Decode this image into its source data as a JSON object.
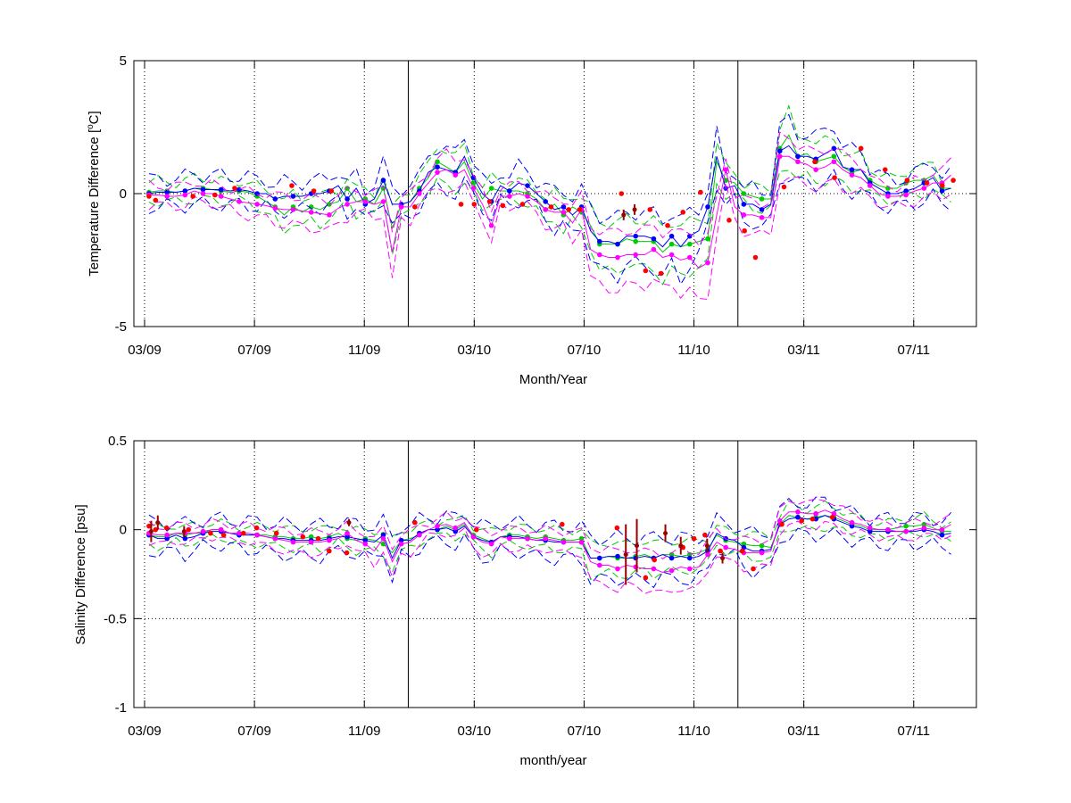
{
  "chart_data": [
    {
      "type": "line",
      "xlabel": "Month/Year",
      "ylabel_prefix": "Temperature Difference [",
      "ylabel_sup": "o",
      "ylabel_suffix": "C]",
      "ylim": [
        -5,
        5
      ],
      "yticks": [
        -5,
        0,
        5
      ],
      "ytick_labels": [
        "-5",
        "0",
        "5"
      ],
      "xlim": [
        0,
        37
      ],
      "xticks": [
        0,
        5,
        10,
        15,
        20,
        25,
        30,
        35
      ],
      "xtick_labels": [
        "03/09",
        "07/09",
        "11/09",
        "03/10",
        "07/10",
        "11/10",
        "03/11",
        "07/11"
      ],
      "vlines": [
        12,
        27
      ],
      "hline_dotted": 0,
      "grid": "dotted vertical at ticks",
      "series": [
        {
          "color": "#00cc00",
          "style": "dots-line",
          "values": [
            0.05,
            0.1,
            0.1,
            0.05,
            0.1,
            0.2,
            0.2,
            0.15,
            0.1,
            0.05,
            0.1,
            0.05,
            -0.1,
            -0.3,
            -0.5,
            -0.8,
            -0.5,
            -0.7,
            -0.5,
            -0.6,
            -0.4,
            -0.3,
            0.2,
            -0.3,
            -0.2,
            -0.4,
            0.2,
            -1.3,
            -0.4,
            -0.3,
            0.2,
            0.6,
            1.2,
            1.0,
            0.8,
            1.2,
            0.4,
            -0.2,
            0.2,
            0.1,
            0.1,
            0.1,
            0.0,
            -0.2,
            -0.6,
            -0.4,
            -0.8,
            -0.5,
            -0.7,
            -1.2,
            -1.9,
            -1.9,
            -1.9,
            -1.7,
            -1.8,
            -1.8,
            -1.8,
            -2.2,
            -1.9,
            -2.0,
            -1.9,
            -1.8,
            -1.7,
            1.2,
            0.5,
            0.4,
            0.0,
            -0.1,
            -0.2,
            -0.2,
            1.7,
            2.2,
            1.4,
            1.5,
            1.2,
            1.3,
            1.4,
            1.0,
            0.8,
            0.9,
            0.5,
            0.3,
            0.2,
            0.2,
            0.4,
            0.5,
            0.5,
            0.7,
            0.2,
            0.2
          ]
        },
        {
          "color": "#0000ff",
          "style": "dots-line",
          "values": [
            0.0,
            0.05,
            0.05,
            0.05,
            0.1,
            0.2,
            0.15,
            0.15,
            0.15,
            0.1,
            0.15,
            0.1,
            0.0,
            0.0,
            -0.2,
            -0.1,
            -0.1,
            -0.1,
            0.0,
            0.0,
            0.1,
            0.3,
            -0.2,
            0.2,
            -0.4,
            -0.2,
            0.5,
            -0.4,
            -0.4,
            -0.3,
            0.1,
            0.8,
            1.0,
            0.9,
            0.8,
            1.4,
            0.6,
            0.0,
            -0.3,
            0.3,
            0.1,
            0.4,
            0.3,
            0.0,
            -0.3,
            -0.6,
            -0.5,
            -0.8,
            -0.5,
            -1.4,
            -1.8,
            -1.8,
            -1.9,
            -1.6,
            -1.6,
            -1.6,
            -1.7,
            -2.0,
            -1.6,
            -2.0,
            -1.6,
            -1.4,
            -0.5,
            1.4,
            0.2,
            0.3,
            -0.4,
            -0.4,
            -0.6,
            -0.4,
            1.6,
            1.8,
            1.4,
            1.4,
            1.3,
            1.5,
            1.7,
            1.0,
            0.9,
            0.9,
            0.4,
            0.2,
            0.0,
            0.0,
            0.1,
            0.2,
            0.4,
            0.6,
            0.1,
            0.2
          ]
        },
        {
          "color": "#ff00ff",
          "style": "dots-line",
          "values": [
            -0.05,
            -0.05,
            -0.1,
            -0.1,
            -0.05,
            0.1,
            0.0,
            0.0,
            -0.1,
            -0.2,
            -0.3,
            -0.35,
            -0.4,
            -0.45,
            -0.55,
            -0.6,
            -0.6,
            -0.65,
            -0.7,
            -0.75,
            -0.8,
            -0.55,
            -0.4,
            -0.3,
            -0.3,
            -0.4,
            -0.3,
            -2.2,
            -0.5,
            -0.5,
            0.0,
            0.4,
            0.8,
            0.9,
            0.7,
            0.9,
            0.2,
            -0.4,
            -1.2,
            -0.1,
            -0.1,
            0.0,
            -0.1,
            -0.3,
            -0.6,
            -0.7,
            -0.7,
            -1.1,
            -0.6,
            -2.1,
            -2.3,
            -2.4,
            -2.4,
            -2.3,
            -2.3,
            -2.3,
            -2.1,
            -2.4,
            -2.3,
            -2.5,
            -2.4,
            -2.8,
            -2.6,
            -0.8,
            0.9,
            -0.5,
            -0.8,
            -0.8,
            -0.9,
            -0.9,
            1.4,
            1.4,
            1.2,
            1.1,
            0.9,
            1.0,
            1.2,
            0.9,
            0.7,
            0.6,
            0.3,
            0.0,
            -0.1,
            -0.1,
            -0.05,
            0.1,
            0.2,
            0.4,
            0.4,
            0.7
          ]
        },
        {
          "color": "#ff0000",
          "style": "markers",
          "x": [
            0.2,
            0.5,
            2.2,
            3.2,
            4.1,
            6.7,
            7.7,
            8.5,
            12.3,
            14.4,
            15.0,
            15.7,
            16.3,
            17.2,
            18.5,
            19.3,
            19.8,
            21.7,
            22.8,
            23.0,
            23.5,
            23.8,
            24.5,
            25.3,
            26.6,
            27.3,
            27.8,
            29.1,
            30.5,
            31.4,
            32.6,
            33.7,
            34.7,
            35.6,
            36.3,
            36.8
          ],
          "values": [
            -0.1,
            -0.25,
            -0.1,
            -0.05,
            0.2,
            0.3,
            0.1,
            0.1,
            -0.5,
            -0.4,
            -0.4,
            -0.3,
            -0.45,
            -0.4,
            -0.5,
            -0.6,
            -0.6,
            0.0,
            -2.9,
            -0.6,
            -3.0,
            -1.2,
            -0.7,
            0.05,
            -1.0,
            -1.4,
            -2.4,
            0.25,
            1.2,
            0.6,
            1.7,
            0.9,
            0.5,
            0.4,
            0.3,
            0.5
          ]
        },
        {
          "color": "#990000",
          "style": "errorbars",
          "x": [
            21.8,
            22.3
          ],
          "values": [
            -0.8,
            -0.6
          ],
          "err": [
            0.2,
            0.2
          ]
        }
      ]
    },
    {
      "type": "line",
      "xlabel": "month/year",
      "ylabel": "Salinity Difference [psu]",
      "ylim": [
        -1,
        0.5
      ],
      "yticks": [
        -1,
        -0.5,
        0,
        0.5
      ],
      "ytick_labels": [
        "-1",
        "-0.5",
        "0",
        "0.5"
      ],
      "xlim": [
        0,
        37
      ],
      "xticks": [
        0,
        5,
        10,
        15,
        20,
        25,
        30,
        35
      ],
      "xtick_labels": [
        "03/09",
        "07/09",
        "11/09",
        "03/10",
        "07/10",
        "11/10",
        "03/11",
        "07/11"
      ],
      "vlines": [
        12,
        27
      ],
      "hline_dotted": -0.5,
      "grid": "dotted vertical at ticks",
      "series": [
        {
          "color": "#00cc00",
          "style": "dots-line",
          "values": [
            -0.03,
            -0.04,
            -0.04,
            -0.02,
            -0.03,
            -0.02,
            -0.02,
            0.0,
            0.0,
            -0.02,
            -0.03,
            -0.03,
            -0.03,
            -0.03,
            -0.04,
            -0.04,
            -0.05,
            -0.05,
            -0.04,
            -0.05,
            -0.04,
            -0.02,
            -0.05,
            -0.06,
            -0.05,
            -0.06,
            -0.08,
            -0.13,
            -0.06,
            -0.05,
            -0.03,
            0.0,
            0.0,
            0.02,
            0.0,
            0.03,
            -0.03,
            -0.05,
            -0.07,
            -0.04,
            -0.03,
            -0.03,
            -0.04,
            -0.05,
            -0.04,
            -0.05,
            -0.06,
            -0.06,
            -0.05,
            -0.16,
            -0.16,
            -0.15,
            -0.16,
            -0.16,
            -0.15,
            -0.14,
            -0.16,
            -0.14,
            -0.14,
            -0.15,
            -0.14,
            -0.13,
            -0.11,
            -0.03,
            -0.06,
            -0.07,
            -0.08,
            -0.09,
            -0.09,
            -0.1,
            0.03,
            0.08,
            0.07,
            0.06,
            0.07,
            0.08,
            0.07,
            0.05,
            0.03,
            0.02,
            0.0,
            0.0,
            0.0,
            0.01,
            0.02,
            0.02,
            0.03,
            0.01,
            -0.01,
            -0.01
          ]
        },
        {
          "color": "#0000ff",
          "style": "dots-line",
          "values": [
            -0.03,
            -0.05,
            -0.05,
            -0.03,
            -0.05,
            -0.04,
            -0.02,
            -0.01,
            -0.01,
            -0.02,
            -0.03,
            -0.03,
            -0.03,
            -0.04,
            -0.05,
            -0.05,
            -0.06,
            -0.06,
            -0.06,
            -0.06,
            -0.05,
            -0.04,
            -0.04,
            -0.05,
            -0.06,
            -0.07,
            -0.03,
            -0.16,
            -0.06,
            -0.06,
            -0.02,
            0.0,
            0.0,
            0.01,
            -0.01,
            0.02,
            -0.04,
            -0.06,
            -0.07,
            -0.04,
            -0.04,
            -0.04,
            -0.05,
            -0.06,
            -0.06,
            -0.07,
            -0.07,
            -0.07,
            -0.07,
            -0.16,
            -0.16,
            -0.15,
            -0.15,
            -0.16,
            -0.16,
            -0.15,
            -0.16,
            -0.14,
            -0.16,
            -0.15,
            -0.16,
            -0.15,
            -0.12,
            -0.02,
            -0.05,
            -0.06,
            -0.1,
            -0.12,
            -0.12,
            -0.11,
            0.03,
            0.06,
            0.07,
            0.06,
            0.06,
            0.08,
            0.06,
            0.04,
            0.02,
            0.01,
            -0.01,
            -0.01,
            -0.01,
            -0.01,
            -0.01,
            -0.01,
            0.0,
            -0.01,
            -0.03,
            -0.02
          ]
        },
        {
          "color": "#ff00ff",
          "style": "dots-line",
          "values": [
            -0.02,
            -0.03,
            -0.03,
            -0.02,
            -0.02,
            -0.02,
            -0.01,
            0.0,
            0.0,
            -0.02,
            -0.02,
            -0.02,
            -0.03,
            -0.04,
            -0.05,
            -0.06,
            -0.07,
            -0.07,
            -0.07,
            -0.07,
            -0.06,
            -0.05,
            -0.02,
            -0.06,
            -0.08,
            -0.12,
            -0.05,
            -0.18,
            -0.08,
            -0.07,
            -0.03,
            0.0,
            0.02,
            0.03,
            0.01,
            0.04,
            -0.04,
            -0.07,
            -0.08,
            -0.04,
            -0.05,
            -0.05,
            -0.05,
            -0.06,
            -0.05,
            -0.06,
            -0.07,
            -0.07,
            -0.07,
            -0.18,
            -0.2,
            -0.2,
            -0.22,
            -0.2,
            -0.21,
            -0.22,
            -0.22,
            -0.24,
            -0.23,
            -0.21,
            -0.22,
            -0.21,
            -0.14,
            -0.07,
            -0.1,
            -0.11,
            -0.13,
            -0.13,
            -0.13,
            -0.12,
            0.05,
            0.1,
            0.1,
            0.09,
            0.09,
            0.11,
            0.09,
            0.06,
            0.04,
            0.03,
            0.01,
            0.0,
            0.0,
            -0.01,
            -0.01,
            0.0,
            0.01,
            0.0,
            0.0,
            0.03
          ]
        },
        {
          "color": "#ff0000",
          "style": "markers",
          "x": [
            0.2,
            0.5,
            1.0,
            2.0,
            3.0,
            3.6,
            4.5,
            5.1,
            6.0,
            7.2,
            7.9,
            8.4,
            9.2,
            12.3,
            15.1,
            19.0,
            21.5,
            22.8,
            23.2,
            24.5,
            25.0,
            25.5,
            26.2,
            27.2,
            27.7,
            29.0,
            29.9,
            30.4,
            31.3
          ],
          "values": [
            0.02,
            0.0,
            0.01,
            0.0,
            -0.02,
            -0.03,
            -0.02,
            0.01,
            -0.02,
            -0.04,
            -0.05,
            -0.12,
            -0.13,
            0.04,
            0.0,
            0.03,
            0.01,
            -0.27,
            -0.17,
            -0.1,
            -0.05,
            -0.03,
            -0.12,
            -0.12,
            -0.22,
            0.03,
            0.05,
            0.06,
            0.07
          ]
        },
        {
          "color": "#990000",
          "style": "errorbars",
          "x": [
            0.3,
            0.6,
            1.8,
            9.3,
            21.9,
            22.4,
            23.7,
            24.4,
            25.6,
            26.3
          ],
          "values": [
            -0.01,
            0.04,
            -0.01,
            0.04,
            -0.14,
            -0.09,
            -0.02,
            -0.09,
            -0.09,
            -0.16
          ],
          "err": [
            0.06,
            0.04,
            0.03,
            0.02,
            0.17,
            0.15,
            0.05,
            0.05,
            0.04,
            0.03
          ]
        }
      ]
    }
  ]
}
